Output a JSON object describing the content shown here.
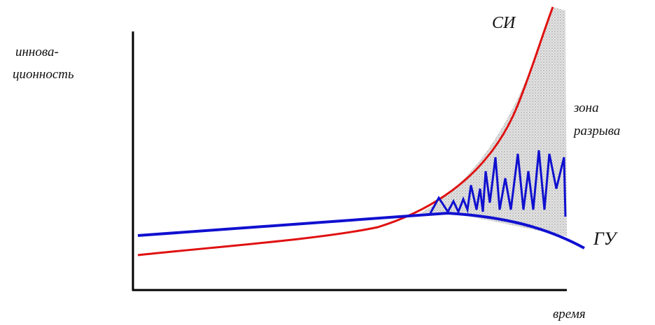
{
  "labels": {
    "y_axis": [
      "иннова-",
      "ционность"
    ],
    "si": "СИ",
    "zone": [
      "зона",
      "разрыва"
    ],
    "gu": "ГУ",
    "x_axis": "время"
  }
}
